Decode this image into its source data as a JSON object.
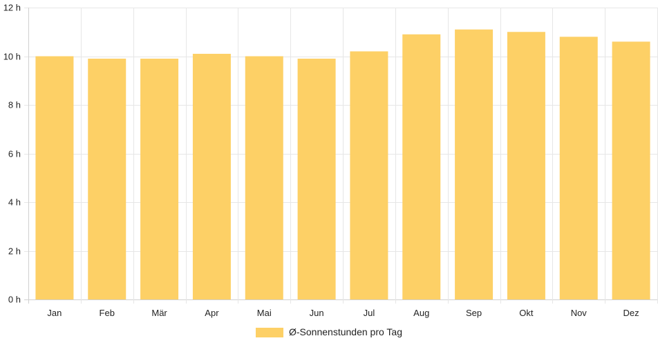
{
  "chart_data": {
    "type": "bar",
    "categories": [
      "Jan",
      "Feb",
      "Mär",
      "Apr",
      "Mai",
      "Jun",
      "Jul",
      "Aug",
      "Sep",
      "Okt",
      "Nov",
      "Dez"
    ],
    "series": [
      {
        "name": "Ø-Sonnenstunden pro Tag",
        "values": [
          10.0,
          9.9,
          9.9,
          10.1,
          10.0,
          9.9,
          10.2,
          10.9,
          11.1,
          11.0,
          10.8,
          10.6
        ],
        "color": "#fdd066"
      }
    ],
    "y_ticks": [
      "0 h",
      "2 h",
      "4 h",
      "6 h",
      "8 h",
      "10 h",
      "12 h"
    ],
    "ylim": [
      0,
      12
    ],
    "grid": true,
    "legend_position": "bottom"
  }
}
